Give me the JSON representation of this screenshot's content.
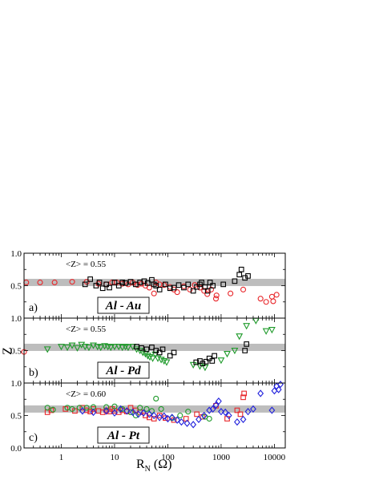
{
  "chart_data": [
    {
      "type": "scatter",
      "panel": "a)",
      "inset_label": "Al - Au",
      "mean_label": "<Z> = 0.55",
      "band_value": 0.55,
      "xlim": [
        0.2,
        16000
      ],
      "xscale": "log",
      "ylim": [
        0.0,
        1.0
      ],
      "yticks": [
        "0.5",
        "1.0"
      ],
      "series": [
        {
          "marker": "circle",
          "color": "#e8262a",
          "points": [
            [
              0.22,
              0.55
            ],
            [
              0.4,
              0.55
            ],
            [
              0.75,
              0.55
            ],
            [
              1.6,
              0.56
            ],
            [
              3,
              0.56
            ],
            [
              5,
              0.53
            ],
            [
              7,
              0.52
            ],
            [
              9,
              0.55
            ],
            [
              11,
              0.55
            ],
            [
              14,
              0.53
            ],
            [
              18,
              0.52
            ],
            [
              22,
              0.55
            ],
            [
              27,
              0.51
            ],
            [
              32,
              0.53
            ],
            [
              38,
              0.5
            ],
            [
              45,
              0.47
            ],
            [
              55,
              0.38
            ],
            [
              60,
              0.55
            ],
            [
              70,
              0.52
            ],
            [
              85,
              0.51
            ],
            [
              110,
              0.48
            ],
            [
              130,
              0.44
            ],
            [
              150,
              0.4
            ],
            [
              200,
              0.49
            ],
            [
              260,
              0.44
            ],
            [
              320,
              0.51
            ],
            [
              400,
              0.47
            ],
            [
              480,
              0.42
            ],
            [
              550,
              0.37
            ],
            [
              650,
              0.44
            ],
            [
              800,
              0.3
            ],
            [
              820,
              0.35
            ],
            [
              1500,
              0.38
            ],
            [
              2600,
              0.44
            ],
            [
              5500,
              0.3
            ],
            [
              7000,
              0.25
            ],
            [
              9000,
              0.33
            ],
            [
              9500,
              0.26
            ],
            [
              11000,
              0.36
            ]
          ]
        },
        {
          "marker": "square",
          "color": "#000000",
          "points": [
            [
              2.8,
              0.52
            ],
            [
              3.5,
              0.6
            ],
            [
              4.5,
              0.5
            ],
            [
              5.2,
              0.55
            ],
            [
              6,
              0.46
            ],
            [
              7,
              0.52
            ],
            [
              8,
              0.47
            ],
            [
              10,
              0.55
            ],
            [
              12,
              0.5
            ],
            [
              14,
              0.55
            ],
            [
              16,
              0.54
            ],
            [
              20,
              0.56
            ],
            [
              25,
              0.52
            ],
            [
              30,
              0.55
            ],
            [
              36,
              0.57
            ],
            [
              42,
              0.54
            ],
            [
              50,
              0.59
            ],
            [
              55,
              0.52
            ],
            [
              60,
              0.5
            ],
            [
              70,
              0.44
            ],
            [
              90,
              0.52
            ],
            [
              110,
              0.46
            ],
            [
              130,
              0.47
            ],
            [
              160,
              0.51
            ],
            [
              200,
              0.47
            ],
            [
              240,
              0.52
            ],
            [
              300,
              0.42
            ],
            [
              350,
              0.48
            ],
            [
              400,
              0.52
            ],
            [
              430,
              0.55
            ],
            [
              500,
              0.48
            ],
            [
              560,
              0.42
            ],
            [
              620,
              0.55
            ],
            [
              700,
              0.5
            ],
            [
              1100,
              0.52
            ],
            [
              1800,
              0.57
            ],
            [
              2200,
              0.67
            ],
            [
              2400,
              0.75
            ],
            [
              2800,
              0.62
            ],
            [
              3200,
              0.65
            ]
          ]
        }
      ]
    },
    {
      "type": "scatter",
      "panel": "b)",
      "inset_label": "Al - Pd",
      "mean_label": "<Z> = 0.55",
      "band_value": 0.55,
      "xlim": [
        0.2,
        16000
      ],
      "xscale": "log",
      "ylim": [
        0.0,
        1.0
      ],
      "yticks": [
        "0.5",
        "1.0"
      ],
      "series": [
        {
          "marker": "circle",
          "color": "#e8262a",
          "points": [
            [
              0.2,
              0.48
            ]
          ]
        },
        {
          "marker": "triangle-down",
          "color": "#1e9a2a",
          "points": [
            [
              0.55,
              0.52
            ],
            [
              1.0,
              0.56
            ],
            [
              1.3,
              0.55
            ],
            [
              1.6,
              0.58
            ],
            [
              2.0,
              0.54
            ],
            [
              2.4,
              0.59
            ],
            [
              2.8,
              0.56
            ],
            [
              3.3,
              0.55
            ],
            [
              4.0,
              0.58
            ],
            [
              4.8,
              0.56
            ],
            [
              5.5,
              0.55
            ],
            [
              6.5,
              0.57
            ],
            [
              7.5,
              0.56
            ],
            [
              8.5,
              0.55
            ],
            [
              10,
              0.56
            ],
            [
              12,
              0.56
            ],
            [
              14,
              0.55
            ],
            [
              16,
              0.56
            ],
            [
              18,
              0.55
            ],
            [
              22,
              0.56
            ],
            [
              26,
              0.52
            ],
            [
              30,
              0.5
            ],
            [
              34,
              0.47
            ],
            [
              38,
              0.45
            ],
            [
              42,
              0.42
            ],
            [
              46,
              0.4
            ],
            [
              52,
              0.38
            ],
            [
              58,
              0.44
            ],
            [
              65,
              0.38
            ],
            [
              75,
              0.36
            ],
            [
              85,
              0.34
            ],
            [
              95,
              0.32
            ],
            [
              300,
              0.28
            ],
            [
              400,
              0.26
            ],
            [
              500,
              0.24
            ],
            [
              1000,
              0.35
            ],
            [
              1300,
              0.45
            ],
            [
              1800,
              0.5
            ],
            [
              2200,
              0.72
            ],
            [
              3000,
              0.88
            ],
            [
              4500,
              0.96
            ],
            [
              7000,
              0.8
            ],
            [
              9000,
              0.82
            ]
          ]
        },
        {
          "marker": "square",
          "color": "#000000",
          "points": [
            [
              26,
              0.56
            ],
            [
              32,
              0.54
            ],
            [
              40,
              0.52
            ],
            [
              50,
              0.55
            ],
            [
              60,
              0.5
            ],
            [
              70,
              0.47
            ],
            [
              80,
              0.52
            ],
            [
              110,
              0.42
            ],
            [
              130,
              0.47
            ],
            [
              340,
              0.32
            ],
            [
              400,
              0.34
            ],
            [
              450,
              0.3
            ],
            [
              520,
              0.33
            ],
            [
              600,
              0.38
            ],
            [
              680,
              0.34
            ],
            [
              750,
              0.42
            ],
            [
              2800,
              0.5
            ],
            [
              3000,
              0.6
            ]
          ]
        }
      ]
    },
    {
      "type": "scatter",
      "panel": "c)",
      "inset_label": "Al - Pt",
      "mean_label": "<Z> = 0.60",
      "band_value": 0.6,
      "xlim": [
        0.2,
        16000
      ],
      "xscale": "log",
      "ylim": [
        0.0,
        1.0
      ],
      "xlabel": "R",
      "xlabel_sub": "N",
      "xlabel_unit": "(Ω)",
      "xticks": [
        "1",
        "10",
        "100",
        "1000",
        "10000"
      ],
      "yticks": [
        "0.0",
        "0.5",
        "1.0"
      ],
      "series": [
        {
          "marker": "square",
          "color": "#e8262a",
          "points": [
            [
              0.55,
              0.55
            ],
            [
              0.65,
              0.58
            ],
            [
              1.2,
              0.6
            ],
            [
              1.8,
              0.57
            ],
            [
              2.5,
              0.62
            ],
            [
              3.0,
              0.58
            ],
            [
              3.5,
              0.56
            ],
            [
              4.0,
              0.6
            ],
            [
              5,
              0.57
            ],
            [
              6,
              0.55
            ],
            [
              7,
              0.58
            ],
            [
              8,
              0.56
            ],
            [
              9,
              0.6
            ],
            [
              10,
              0.57
            ],
            [
              12,
              0.55
            ],
            [
              14,
              0.58
            ],
            [
              17,
              0.56
            ],
            [
              20,
              0.62
            ],
            [
              25,
              0.58
            ],
            [
              30,
              0.55
            ],
            [
              38,
              0.5
            ],
            [
              45,
              0.47
            ],
            [
              55,
              0.45
            ],
            [
              70,
              0.5
            ],
            [
              90,
              0.46
            ],
            [
              130,
              0.43
            ],
            [
              220,
              0.45
            ],
            [
              350,
              0.52
            ],
            [
              450,
              0.48
            ],
            [
              800,
              0.65
            ],
            [
              1300,
              0.45
            ],
            [
              2000,
              0.58
            ],
            [
              2300,
              0.52
            ],
            [
              2600,
              0.78
            ],
            [
              2700,
              0.84
            ]
          ]
        },
        {
          "marker": "circle",
          "color": "#1e9a2a",
          "points": [
            [
              0.55,
              0.62
            ],
            [
              0.7,
              0.59
            ],
            [
              1.3,
              0.62
            ],
            [
              1.6,
              0.6
            ],
            [
              2.2,
              0.62
            ],
            [
              3.0,
              0.62
            ],
            [
              4,
              0.63
            ],
            [
              7,
              0.63
            ],
            [
              10,
              0.64
            ],
            [
              14,
              0.6
            ],
            [
              20,
              0.55
            ],
            [
              25,
              0.5
            ],
            [
              30,
              0.62
            ],
            [
              40,
              0.6
            ],
            [
              50,
              0.57
            ],
            [
              60,
              0.76
            ],
            [
              75,
              0.6
            ],
            [
              120,
              0.46
            ],
            [
              170,
              0.5
            ],
            [
              240,
              0.56
            ],
            [
              500,
              0.48
            ],
            [
              600,
              0.45
            ]
          ]
        },
        {
          "marker": "diamond",
          "color": "#2121dd",
          "points": [
            [
              2.5,
              0.57
            ],
            [
              4,
              0.55
            ],
            [
              7,
              0.57
            ],
            [
              10,
              0.54
            ],
            [
              13,
              0.6
            ],
            [
              17,
              0.57
            ],
            [
              22,
              0.55
            ],
            [
              28,
              0.52
            ],
            [
              35,
              0.54
            ],
            [
              45,
              0.52
            ],
            [
              55,
              0.5
            ],
            [
              70,
              0.47
            ],
            [
              85,
              0.49
            ],
            [
              100,
              0.45
            ],
            [
              120,
              0.47
            ],
            [
              150,
              0.43
            ],
            [
              180,
              0.4
            ],
            [
              230,
              0.38
            ],
            [
              300,
              0.36
            ],
            [
              380,
              0.44
            ],
            [
              480,
              0.5
            ],
            [
              600,
              0.58
            ],
            [
              700,
              0.6
            ],
            [
              800,
              0.66
            ],
            [
              900,
              0.72
            ],
            [
              1000,
              0.56
            ],
            [
              1200,
              0.55
            ],
            [
              1400,
              0.5
            ],
            [
              2000,
              0.4
            ],
            [
              2600,
              0.44
            ],
            [
              3200,
              0.56
            ],
            [
              4000,
              0.6
            ],
            [
              5500,
              0.84
            ],
            [
              9000,
              0.58
            ],
            [
              10000,
              0.88
            ],
            [
              11000,
              0.95
            ],
            [
              12000,
              0.9
            ],
            [
              13000,
              0.98
            ]
          ]
        }
      ]
    }
  ],
  "ylabel": "Z"
}
